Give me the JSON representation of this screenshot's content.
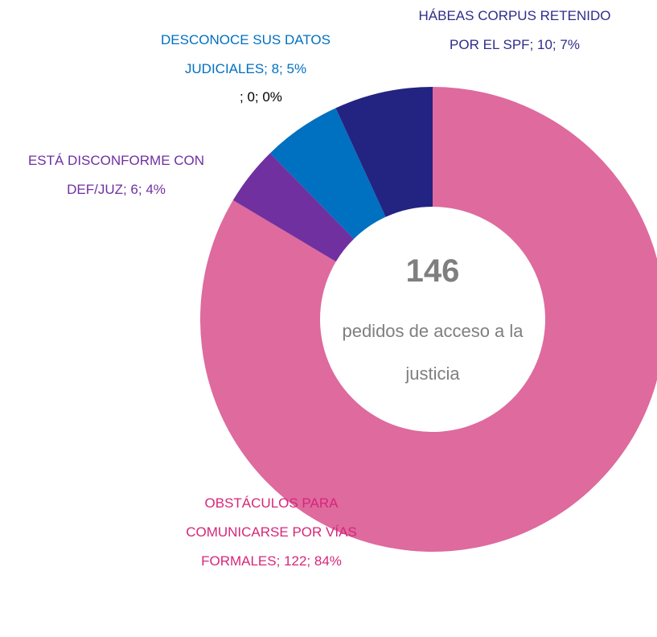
{
  "chart_data": {
    "type": "donut",
    "categories": [
      "OBSTÁCULOS PARA COMUNICARSE POR VÍAS FORMALES",
      "ESTÁ DISCONFORME CON DEF/JUZ",
      "DESCONOCE SUS DATOS JUDICIALES",
      null,
      "HÁBEAS CORPUS RETENIDO POR EL SPF"
    ],
    "values": [
      122,
      6,
      8,
      0,
      10
    ],
    "value_labels": [
      "; 122; 84%",
      "; 6; 4%",
      "; 8; 5%",
      "; 0; 0%",
      "; 10; 7%"
    ],
    "colors": [
      "#de6a9e",
      "#7030a0",
      "#0070c0",
      "#1f6fbf",
      "#232382"
    ],
    "label_colors": [
      "#d6267a",
      "#7030a0",
      "#0070c0",
      "#000000",
      "#2e2e8a"
    ],
    "center_value": 146,
    "center_text": "pedidos de acceso a la justicia"
  }
}
